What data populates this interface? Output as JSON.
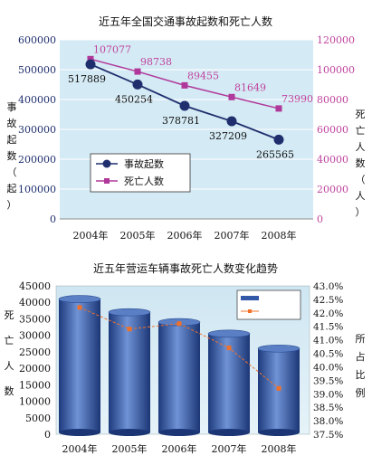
{
  "colors": {
    "accidents": "#1f2f6e",
    "deaths": "#b0389a",
    "deaths_axis": "#c0449e",
    "plot_bg": "#d4eaf4",
    "bar": "#3358a8",
    "ratio_line": "#f0702a"
  },
  "chart_data": [
    {
      "type": "line",
      "title": "近五年全国交通事故起数和死亡人数",
      "categories": [
        "2004年",
        "2005年",
        "2006年",
        "2007年",
        "2008年"
      ],
      "ylabel": "事故起数（起）",
      "y2label": "死亡人数（人）",
      "ylim": [
        0,
        600000
      ],
      "y2lim": [
        0,
        120000
      ],
      "yticks": [
        "0",
        "100000",
        "200000",
        "300000",
        "400000",
        "500000",
        "600000"
      ],
      "y2ticks": [
        "0",
        "20000",
        "40000",
        "60000",
        "80000",
        "100000",
        "120000"
      ],
      "grid": true,
      "legend": "lower-left",
      "series": [
        {
          "name": "事故起数",
          "axis": "left",
          "values": [
            517889,
            450254,
            378781,
            327209,
            265565
          ],
          "labels": [
            "517889",
            "450254",
            "378781",
            "327209",
            "265565"
          ]
        },
        {
          "name": "死亡人数",
          "axis": "right",
          "values": [
            107077,
            98738,
            89455,
            81649,
            73990
          ],
          "labels": [
            "107077",
            "98738",
            "89455",
            "81649",
            "73990"
          ]
        }
      ]
    },
    {
      "type": "bar",
      "title": "近五年营运车辆事故死亡人数变化趋势",
      "categories": [
        "2004年",
        "2005年",
        "2006年",
        "2007年",
        "2008年"
      ],
      "ylabel": "死亡人数",
      "y2label": "所占比例",
      "ylim": [
        0,
        45000
      ],
      "y2lim": [
        37.5,
        43.0
      ],
      "yticks": [
        "0",
        "5000",
        "10000",
        "15000",
        "20000",
        "25000",
        "30000",
        "35000",
        "40000",
        "45000"
      ],
      "y2ticks": [
        "37.5%",
        "38.0%",
        "38.5%",
        "39.0%",
        "39.5%",
        "40.0%",
        "40.5%",
        "41.0%",
        "41.5%",
        "42.0%",
        "42.5%",
        "43.0%"
      ],
      "grid": false,
      "legend": "top-right",
      "series": [
        {
          "kind": "bar",
          "axis": "left",
          "values": [
            41000,
            37000,
            34000,
            30500,
            26000
          ]
        },
        {
          "kind": "line",
          "axis": "right",
          "values": [
            42.2,
            41.4,
            41.6,
            40.7,
            39.2
          ]
        }
      ]
    }
  ]
}
